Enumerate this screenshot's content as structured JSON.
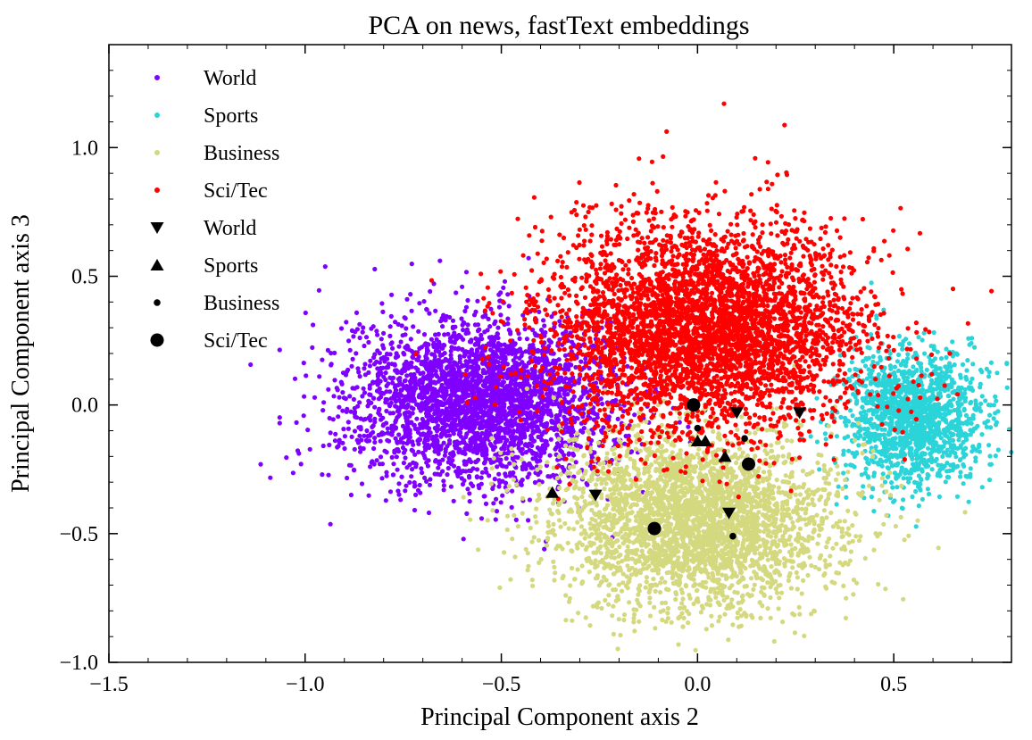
{
  "chart_data": {
    "type": "scatter",
    "title": "PCA on news, fastText embeddings",
    "xlabel": "Principal Component axis 2",
    "ylabel": "Principal Component axis 3",
    "xlim": [
      -1.5,
      0.8
    ],
    "ylim": [
      -1.0,
      1.4
    ],
    "x_ticks": [
      -1.5,
      -1.0,
      -0.5,
      0.0,
      0.5
    ],
    "y_ticks": [
      -1.0,
      -0.5,
      0.0,
      0.5,
      1.0
    ],
    "x_tick_labels": [
      "−1.5",
      "−1.0",
      "−0.5",
      "0.0",
      "0.5"
    ],
    "y_tick_labels": [
      "−1.0",
      "−0.5",
      "0.0",
      "0.5",
      "1.0"
    ],
    "grid": false,
    "legend_position": "top-left",
    "clusters": [
      {
        "name": "World",
        "color": "#7f00ff",
        "mean": [
          -0.55,
          0.02
        ],
        "sd": [
          0.17,
          0.16
        ],
        "n": 3200
      },
      {
        "name": "Sports",
        "color": "#2ad4d8",
        "mean": [
          0.55,
          -0.05
        ],
        "sd": [
          0.09,
          0.13
        ],
        "n": 1500
      },
      {
        "name": "Business",
        "color": "#d4d87f",
        "mean": [
          0.0,
          -0.45
        ],
        "sd": [
          0.18,
          0.17
        ],
        "n": 3200
      },
      {
        "name": "Sci/Tec",
        "color": "#ff0000",
        "mean": [
          0.02,
          0.3
        ],
        "sd": [
          0.2,
          0.2
        ],
        "n": 4200
      }
    ],
    "centroid_series": [
      {
        "name": "World",
        "marker": "triangle-down",
        "points": [
          [
            0.1,
            -0.03
          ],
          [
            0.26,
            -0.03
          ],
          [
            0.08,
            -0.42
          ],
          [
            -0.26,
            -0.35
          ]
        ]
      },
      {
        "name": "Sports",
        "marker": "triangle-up",
        "points": [
          [
            0.0,
            -0.14
          ],
          [
            0.02,
            -0.14
          ],
          [
            0.07,
            -0.2
          ],
          [
            -0.37,
            -0.34
          ]
        ]
      },
      {
        "name": "Business",
        "marker": "small-dot",
        "points": [
          [
            0.12,
            -0.13
          ],
          [
            0.0,
            -0.09
          ],
          [
            0.09,
            -0.51
          ]
        ]
      },
      {
        "name": "Sci/Tec",
        "marker": "large-dot",
        "points": [
          [
            -0.01,
            0.0
          ],
          [
            0.13,
            -0.23
          ],
          [
            -0.11,
            -0.48
          ]
        ]
      }
    ]
  }
}
